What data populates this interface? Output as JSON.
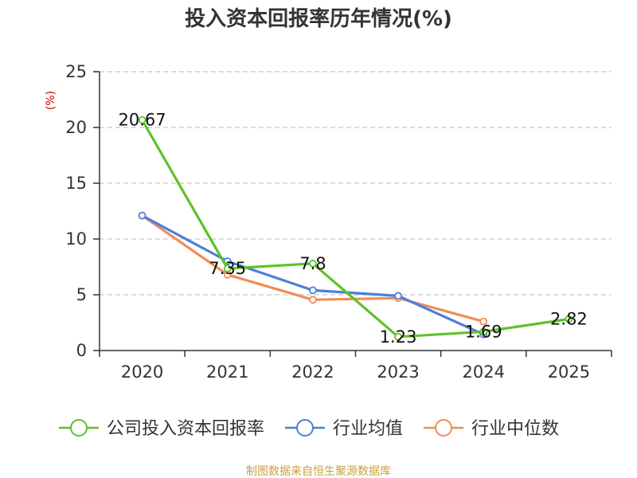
{
  "chart_data": {
    "type": "line",
    "title": "投入资本回报率历年情况(%)",
    "ylabel": "(%)",
    "xlabel": "",
    "categories": [
      "2020",
      "2021",
      "2022",
      "2023",
      "2024",
      "2025"
    ],
    "ylim": [
      0,
      25
    ],
    "yticks": [
      0,
      5,
      10,
      15,
      20,
      25
    ],
    "grid": true,
    "legend_position": "bottom",
    "series": [
      {
        "name": "公司投入资本回报率",
        "color": "#5dc22a",
        "values": [
          20.67,
          7.35,
          7.8,
          1.23,
          1.69,
          2.82
        ],
        "labels": [
          "20.67",
          "7.35",
          "7.8",
          "1.23",
          "1.69",
          "2.82"
        ]
      },
      {
        "name": "行业均值",
        "color": "#4e7fd9",
        "values": [
          12.1,
          8.0,
          5.4,
          4.9,
          1.45,
          null
        ]
      },
      {
        "name": "行业中位数",
        "color": "#f08c57",
        "values": [
          12.1,
          6.8,
          4.55,
          4.7,
          2.6,
          null
        ]
      }
    ]
  },
  "source": "制图数据来自恒生聚源数据库",
  "colors": {
    "source": "#c8a040",
    "ylabel": "#cc0000",
    "axis": "#333333",
    "grid": "#c8c8c8"
  }
}
